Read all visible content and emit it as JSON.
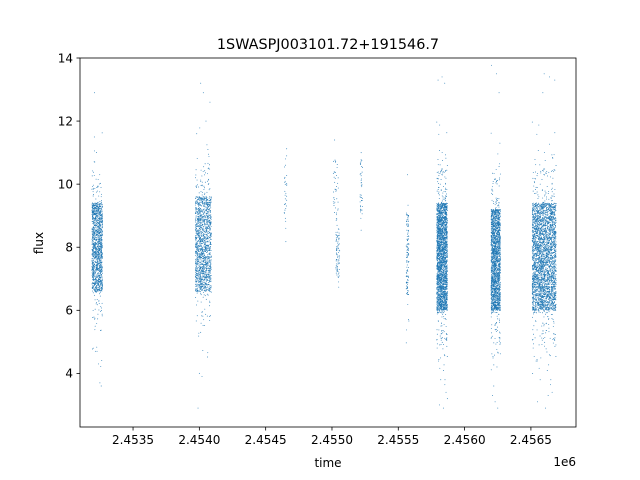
{
  "chart_data": {
    "type": "scatter",
    "title": "1SWASPJ003101.72+191546.7",
    "xlabel": "time",
    "ylabel": "flux",
    "x_offset_label": "1e6",
    "xlim": [
      2.4531,
      2.45684
    ],
    "ylim": [
      2.3,
      14
    ],
    "x_ticks": [
      2.4535,
      2.454,
      2.4545,
      2.455,
      2.4555,
      2.456,
      2.4565
    ],
    "x_tick_labels": [
      "2.4535",
      "2.4540",
      "2.4545",
      "2.4550",
      "2.4555",
      "2.4560",
      "2.4565"
    ],
    "y_ticks": [
      4,
      6,
      8,
      10,
      12,
      14
    ],
    "y_tick_labels": [
      "4",
      "6",
      "8",
      "10",
      "12",
      "14"
    ],
    "marker_color": "#1f77b4",
    "grid": false,
    "clusters": [
      {
        "x_start": 2.45319,
        "x_end": 2.45327,
        "y_center": 8.0,
        "y_spread": 1.4,
        "n": 1400,
        "outliers": [
          [
            2.45321,
            12.9
          ],
          [
            2.45325,
            3.7
          ],
          [
            2.45326,
            3.6
          ],
          [
            2.45324,
            4.3
          ],
          [
            2.4532,
            4.8
          ]
        ]
      },
      {
        "x_start": 2.45397,
        "x_end": 2.45409,
        "y_center": 8.1,
        "y_spread": 1.5,
        "n": 1500,
        "outliers": [
          [
            2.45401,
            13.2
          ],
          [
            2.45403,
            12.9
          ],
          [
            2.45405,
            12.0
          ],
          [
            2.45408,
            12.6
          ],
          [
            2.45398,
            11.6
          ],
          [
            2.454,
            4.0
          ],
          [
            2.45402,
            3.9
          ],
          [
            2.45399,
            2.9
          ],
          [
            2.45401,
            5.3
          ]
        ]
      },
      {
        "x_start": 2.45464,
        "x_end": 2.45466,
        "y_center": 9.6,
        "y_spread": 0.8,
        "n": 30,
        "outliers": [
          [
            2.45465,
            10.8
          ],
          [
            2.45465,
            10.6
          ]
        ]
      },
      {
        "x_start": 2.45501,
        "x_end": 2.45505,
        "y_center": 9.9,
        "y_spread": 0.9,
        "n": 40,
        "outliers": [
          [
            2.45502,
            11.4
          ]
        ]
      },
      {
        "x_start": 2.45503,
        "x_end": 2.45506,
        "y_center": 7.8,
        "y_spread": 0.8,
        "n": 80,
        "outliers": [
          [
            2.45505,
            6.9
          ]
        ]
      },
      {
        "x_start": 2.45521,
        "x_end": 2.45523,
        "y_center": 9.8,
        "y_spread": 1.0,
        "n": 40,
        "outliers": [
          [
            2.45522,
            11.0
          ]
        ]
      },
      {
        "x_start": 2.45556,
        "x_end": 2.45558,
        "y_center": 7.8,
        "y_spread": 1.3,
        "n": 120,
        "outliers": [
          [
            2.45557,
            10.3
          ],
          [
            2.45557,
            6.5
          ]
        ]
      },
      {
        "x_start": 2.45579,
        "x_end": 2.45587,
        "y_center": 7.7,
        "y_spread": 1.7,
        "n": 2600,
        "outliers": [
          [
            2.4558,
            13.3
          ],
          [
            2.45583,
            13.4
          ],
          [
            2.45585,
            13.2
          ],
          [
            2.45581,
            3.0
          ],
          [
            2.45584,
            2.9
          ],
          [
            2.45586,
            3.4
          ],
          [
            2.45582,
            3.8
          ],
          [
            2.45587,
            3.2
          ]
        ]
      },
      {
        "x_start": 2.4562,
        "x_end": 2.45627,
        "y_center": 7.6,
        "y_spread": 1.6,
        "n": 2000,
        "outliers": [
          [
            2.45624,
            13.5
          ],
          [
            2.45626,
            12.9
          ],
          [
            2.45621,
            3.3
          ],
          [
            2.45623,
            3.1
          ],
          [
            2.45625,
            2.9
          ],
          [
            2.45622,
            3.6
          ]
        ]
      },
      {
        "x_start": 2.45651,
        "x_end": 2.45669,
        "y_center": 7.7,
        "y_spread": 1.7,
        "n": 3200,
        "outliers": [
          [
            2.4566,
            13.5
          ],
          [
            2.45664,
            13.4
          ],
          [
            2.45668,
            13.3
          ],
          [
            2.45659,
            12.9
          ],
          [
            2.45655,
            3.1
          ],
          [
            2.45661,
            2.9
          ],
          [
            2.45663,
            3.3
          ],
          [
            2.45657,
            3.8
          ],
          [
            2.45666,
            3.4
          ]
        ]
      }
    ]
  }
}
